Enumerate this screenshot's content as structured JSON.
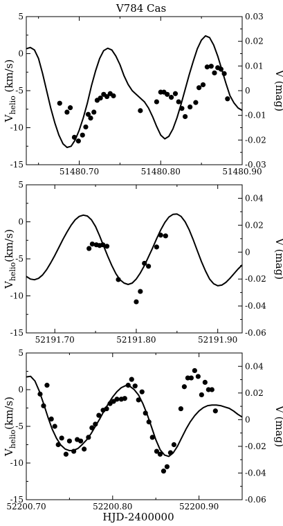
{
  "figure": {
    "title": "V784 Cas",
    "xlabel": "HJD-2400000"
  },
  "chart_data": [
    {
      "type": "scatter",
      "title": "V784 Cas",
      "xlabel": "",
      "ylabel_main": "V",
      "ylabel_sub": "helio",
      "ylabel_unit": " (km/s)",
      "y2label": "V (mag)",
      "xlim": [
        51480.635,
        51480.9
      ],
      "ylim": [
        -15,
        5
      ],
      "y2lim": [
        -0.03,
        0.03
      ],
      "x_ticks": [
        51480.7,
        51480.8,
        51480.9
      ],
      "x_tick_labels": [
        "51480.70",
        "51480.80",
        "51480.90"
      ],
      "y_ticks": [
        -15,
        -10,
        -5,
        0,
        5
      ],
      "y_tick_labels": [
        "-15",
        "-10",
        "-5",
        "0",
        "5"
      ],
      "y2_ticks": [
        -0.03,
        -0.02,
        -0.01,
        0,
        0.01,
        0.02,
        0.03
      ],
      "y2_tick_labels": [
        "-0.03",
        "-0.02",
        "-0.01",
        "0",
        "0.01",
        "0.02",
        "0.03"
      ],
      "series": [
        {
          "kind": "points",
          "axis": "left",
          "x": [
            51480.676,
            51480.685,
            51480.689,
            51480.694,
            51480.699,
            51480.704,
            51480.708,
            51480.711,
            51480.714,
            51480.718,
            51480.722,
            51480.726,
            51480.73,
            51480.734,
            51480.738,
            51480.742,
            51480.775,
            51480.795,
            51480.8,
            51480.804,
            51480.808,
            51480.813,
            51480.818,
            51480.822,
            51480.826,
            51480.83,
            51480.836,
            51480.843,
            51480.847,
            51480.852,
            51480.857,
            51480.862,
            51480.866,
            51480.87,
            51480.874,
            51480.878,
            51480.882
          ],
          "y": [
            -6.7,
            -7.9,
            -7.3,
            -11.3,
            -11.8,
            -11.0,
            -9.9,
            -8.2,
            -8.7,
            -7.9,
            -6.3,
            -6.0,
            -5.5,
            -5.8,
            -5.4,
            -5.7,
            -7.7,
            -6.5,
            -5.2,
            -5.2,
            -5.5,
            -5.9,
            -5.4,
            -6.5,
            -7.4,
            -8.5,
            -7.2,
            -6.6,
            -4.6,
            -4.2,
            -1.8,
            -1.7,
            -2.6,
            -1.9,
            -2.1,
            -2.7,
            -6.1
          ]
        },
        {
          "kind": "line",
          "axis": "right",
          "x": [
            51480.635,
            51480.64,
            51480.645,
            51480.65,
            51480.655,
            51480.66,
            51480.665,
            51480.67,
            51480.675,
            51480.68,
            51480.685,
            51480.69,
            51480.695,
            51480.7,
            51480.705,
            51480.71,
            51480.715,
            51480.72,
            51480.725,
            51480.73,
            51480.735,
            51480.74,
            51480.745,
            51480.75,
            51480.755,
            51480.76,
            51480.765,
            51480.77,
            51480.775,
            51480.78,
            51480.785,
            51480.79,
            51480.795,
            51480.8,
            51480.805,
            51480.81,
            51480.815,
            51480.82,
            51480.825,
            51480.83,
            51480.835,
            51480.84,
            51480.845,
            51480.85,
            51480.855,
            51480.86,
            51480.865,
            51480.87,
            51480.875,
            51480.88,
            51480.885,
            51480.89,
            51480.895,
            51480.9
          ],
          "y": [
            0.017,
            0.0175,
            0.0165,
            0.013,
            0.007,
            0.0,
            -0.007,
            -0.013,
            -0.018,
            -0.0215,
            -0.023,
            -0.0225,
            -0.02,
            -0.016,
            -0.011,
            -0.005,
            0.002,
            0.008,
            0.013,
            0.0162,
            0.0172,
            0.0165,
            0.014,
            0.0105,
            0.006,
            0.0025,
            0.0,
            -0.0015,
            -0.003,
            -0.0045,
            -0.007,
            -0.0105,
            -0.0145,
            -0.018,
            -0.0195,
            -0.0185,
            -0.0155,
            -0.011,
            -0.0055,
            0.0005,
            0.0065,
            0.012,
            0.017,
            0.0205,
            0.0222,
            0.0215,
            0.0185,
            0.014,
            0.0085,
            0.003,
            -0.002,
            -0.005,
            -0.007,
            -0.008
          ]
        }
      ]
    },
    {
      "type": "scatter",
      "title": "",
      "xlabel": "",
      "ylabel_main": "V",
      "ylabel_sub": "helio",
      "ylabel_unit": "(km/s)",
      "y2label": "V (mag)",
      "xlim": [
        52191.665,
        52191.93
      ],
      "ylim": [
        -15,
        5
      ],
      "y2lim": [
        -0.06,
        0.05
      ],
      "x_ticks": [
        52191.7,
        52191.8,
        52191.9
      ],
      "x_tick_labels": [
        "52191.70",
        "52191.80",
        "52191.90"
      ],
      "y_ticks": [
        -15,
        -10,
        -5,
        0,
        5
      ],
      "y_tick_labels": [
        "-15",
        "-10",
        "-5",
        "0",
        "5"
      ],
      "y2_ticks": [
        -0.06,
        -0.04,
        -0.02,
        0,
        0.02,
        0.04
      ],
      "y2_tick_labels": [
        "-0.06",
        "-0.04",
        "-0.02",
        "0",
        "0.02",
        "0.04"
      ],
      "series": [
        {
          "kind": "points",
          "axis": "left",
          "x": [
            52191.742,
            52191.746,
            52191.751,
            52191.755,
            52191.759,
            52191.764,
            52191.778,
            52191.8,
            52191.805,
            52191.81,
            52191.815,
            52191.825,
            52191.83,
            52191.836
          ],
          "y": [
            -3.6,
            -3.0,
            -3.1,
            -3.2,
            -3.1,
            -3.3,
            -7.8,
            -10.8,
            -9.4,
            -5.6,
            -6.0,
            -3.4,
            -1.8,
            -1.9
          ]
        },
        {
          "kind": "line",
          "axis": "right",
          "x": [
            52191.665,
            52191.67,
            52191.675,
            52191.68,
            52191.685,
            52191.69,
            52191.695,
            52191.7,
            52191.705,
            52191.71,
            52191.715,
            52191.72,
            52191.725,
            52191.73,
            52191.735,
            52191.74,
            52191.745,
            52191.75,
            52191.755,
            52191.76,
            52191.765,
            52191.77,
            52191.775,
            52191.78,
            52191.785,
            52191.79,
            52191.795,
            52191.8,
            52191.805,
            52191.81,
            52191.815,
            52191.82,
            52191.825,
            52191.83,
            52191.835,
            52191.84,
            52191.845,
            52191.85,
            52191.855,
            52191.86,
            52191.865,
            52191.87,
            52191.875,
            52191.88,
            52191.885,
            52191.89,
            52191.895,
            52191.9,
            52191.905,
            52191.91,
            52191.915,
            52191.92,
            52191.925,
            52191.93
          ],
          "y": [
            -0.018,
            -0.02,
            -0.0205,
            -0.0195,
            -0.017,
            -0.013,
            -0.008,
            -0.0025,
            0.0035,
            0.0095,
            0.015,
            0.02,
            0.024,
            0.0265,
            0.0275,
            0.0268,
            0.024,
            0.019,
            0.012,
            0.0045,
            -0.003,
            -0.01,
            -0.016,
            -0.0205,
            -0.023,
            -0.024,
            -0.023,
            -0.02,
            -0.0155,
            -0.01,
            -0.0035,
            0.003,
            0.01,
            0.0165,
            0.022,
            0.026,
            0.028,
            0.0283,
            0.0265,
            0.0225,
            0.0165,
            0.009,
            0.001,
            -0.007,
            -0.014,
            -0.02,
            -0.0235,
            -0.025,
            -0.0245,
            -0.0225,
            -0.0195,
            -0.016,
            -0.0125,
            -0.0095
          ]
        }
      ]
    },
    {
      "type": "scatter",
      "title": "",
      "xlabel": "HJD-2400000",
      "ylabel_main": "V",
      "ylabel_sub": "helio",
      "ylabel_unit": "(km/s)",
      "y2label": "V (mag)",
      "xlim": [
        52200.7,
        52200.95
      ],
      "ylim": [
        -15,
        5
      ],
      "y2lim": [
        -0.06,
        0.05
      ],
      "x_ticks": [
        52200.7,
        52200.8,
        52200.9
      ],
      "x_tick_labels": [
        "52200.70",
        "52200.80",
        "52200.90"
      ],
      "y_ticks": [
        -15,
        -10,
        -5,
        0,
        5
      ],
      "y_tick_labels": [
        "-15",
        "-10",
        "-5",
        "0",
        "5"
      ],
      "y2_ticks": [
        -0.06,
        -0.04,
        -0.02,
        0,
        0.02,
        0.04
      ],
      "y2_tick_labels": [
        "-0.06",
        "-0.04",
        "-0.02",
        "0",
        "0.02",
        "0.04"
      ],
      "series": [
        {
          "kind": "points",
          "axis": "left",
          "x": [
            52200.716,
            52200.72,
            52200.724,
            52200.729,
            52200.733,
            52200.737,
            52200.741,
            52200.746,
            52200.75,
            52200.755,
            52200.759,
            52200.763,
            52200.767,
            52200.772,
            52200.776,
            52200.78,
            52200.784,
            52200.789,
            52200.793,
            52200.797,
            52200.801,
            52200.805,
            52200.81,
            52200.814,
            52200.818,
            52200.822,
            52200.826,
            52200.83,
            52200.834,
            52200.838,
            52200.842,
            52200.846,
            52200.851,
            52200.855,
            52200.859,
            52200.863,
            52200.867,
            52200.871,
            52200.879,
            52200.883,
            52200.887,
            52200.891,
            52200.895,
            52200.899,
            52200.903,
            52200.907,
            52200.911,
            52200.915,
            52200.919
          ],
          "y": [
            -0.6,
            -2.2,
            0.6,
            -4.0,
            -5.0,
            -7.5,
            -6.6,
            -8.8,
            -7.0,
            -8.4,
            -6.8,
            -7.0,
            -8.1,
            -6.5,
            -5.2,
            -4.7,
            -3.5,
            -2.8,
            -2.6,
            -1.9,
            -1.6,
            -1.3,
            -1.3,
            -1.2,
            0.6,
            1.4,
            0.5,
            -1.4,
            -0.3,
            -3.2,
            -4.4,
            -6.5,
            -8.4,
            -8.8,
            -11.1,
            -10.5,
            -8.6,
            -7.5,
            -2.6,
            0.4,
            1.6,
            1.6,
            2.6,
            1.8,
            -0.7,
            1.0,
            0.0,
            0.0,
            -2.9
          ]
        },
        {
          "kind": "line",
          "axis": "right",
          "x": [
            52200.7,
            52200.705,
            52200.71,
            52200.715,
            52200.72,
            52200.725,
            52200.73,
            52200.735,
            52200.74,
            52200.745,
            52200.75,
            52200.755,
            52200.76,
            52200.765,
            52200.77,
            52200.775,
            52200.78,
            52200.785,
            52200.79,
            52200.795,
            52200.8,
            52200.805,
            52200.81,
            52200.815,
            52200.82,
            52200.825,
            52200.83,
            52200.835,
            52200.84,
            52200.845,
            52200.85,
            52200.855,
            52200.86,
            52200.865,
            52200.87,
            52200.875,
            52200.88,
            52200.885,
            52200.89,
            52200.895,
            52200.9,
            52200.905,
            52200.91,
            52200.915,
            52200.92,
            52200.925,
            52200.93,
            52200.935,
            52200.94,
            52200.945,
            52200.95
          ],
          "y": [
            0.032,
            0.0325,
            0.029,
            0.0215,
            0.012,
            0.002,
            -0.007,
            -0.014,
            -0.019,
            -0.022,
            -0.0232,
            -0.023,
            -0.0215,
            -0.0185,
            -0.015,
            -0.0105,
            -0.005,
            0.0005,
            0.0065,
            0.012,
            0.017,
            0.021,
            0.024,
            0.0255,
            0.025,
            0.0225,
            0.0185,
            0.012,
            0.004,
            -0.0055,
            -0.015,
            -0.0225,
            -0.0265,
            -0.0275,
            -0.025,
            -0.02,
            -0.0135,
            -0.007,
            -0.0015,
            0.003,
            0.0065,
            0.009,
            0.0105,
            0.011,
            0.011,
            0.0105,
            0.0095,
            0.0085,
            0.0065,
            0.004,
            0.002
          ]
        }
      ]
    }
  ]
}
